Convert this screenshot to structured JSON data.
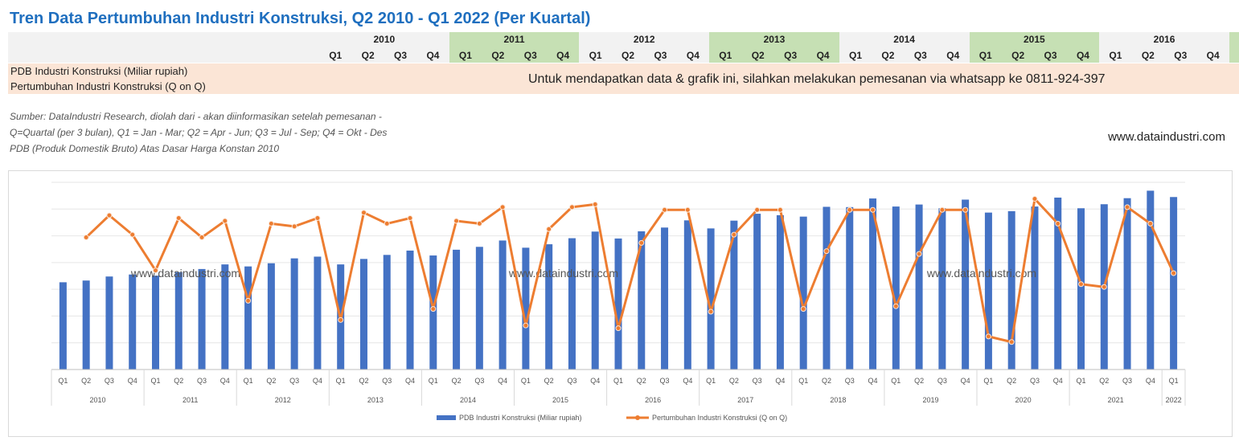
{
  "title": "Tren Data Pertumbuhan Industri Konstruksi, Q2 2010 - Q1 2022 (Per Kuartal)",
  "header": {
    "years": [
      "2010",
      "2011",
      "2012",
      "2013",
      "2014",
      "2015",
      "2016"
    ],
    "quarters": [
      "Q1",
      "Q2",
      "Q3",
      "Q4"
    ],
    "last_year_quarters": [
      "Q1",
      "Q2",
      "Q3",
      "Q4"
    ],
    "highlight_color": "#c6e0b4",
    "plain_color": "#f2f2f2"
  },
  "rows": {
    "row1_label": "PDB Industri Konstruksi (Miliar rupiah)",
    "row2_label": "Pertumbuhan Industri Konstruksi (Q on Q)",
    "notice": "Untuk mendapatkan data & grafik ini, silahkan melakukan pemesanan via whatsapp ke 0811-924-397"
  },
  "source": {
    "line1": "Sumber: DataIndustri Research, diolah dari - akan diinformasikan setelah pemesanan -",
    "line2": "Q=Quartal (per 3 bulan), Q1 = Jan - Mar; Q2 = Apr - Jun; Q3 = Jul - Sep; Q4 = Okt - Des",
    "line3": "PDB (Produk Domestik Bruto) Atas Dasar Harga Konstan 2010"
  },
  "site": "www.dataindustri.com",
  "watermark": "www.dataindustri.com",
  "chart_data": {
    "type": "bar",
    "title": "",
    "xlabel": "",
    "ylabel": "",
    "grid": true,
    "legend_position": "bottom",
    "categories": [
      "Q1",
      "Q2",
      "Q3",
      "Q4",
      "Q1",
      "Q2",
      "Q3",
      "Q4",
      "Q1",
      "Q2",
      "Q3",
      "Q4",
      "Q1",
      "Q2",
      "Q3",
      "Q4",
      "Q1",
      "Q2",
      "Q3",
      "Q4",
      "Q1",
      "Q2",
      "Q3",
      "Q4",
      "Q1",
      "Q2",
      "Q3",
      "Q4",
      "Q1",
      "Q2",
      "Q3",
      "Q4",
      "Q1",
      "Q2",
      "Q3",
      "Q4",
      "Q1",
      "Q2",
      "Q3",
      "Q4",
      "Q1",
      "Q2",
      "Q3",
      "Q4",
      "Q1",
      "Q2",
      "Q3",
      "Q4",
      "Q1"
    ],
    "year_groups": [
      {
        "label": "2010",
        "count": 4
      },
      {
        "label": "2011",
        "count": 4
      },
      {
        "label": "2012",
        "count": 4
      },
      {
        "label": "2013",
        "count": 4
      },
      {
        "label": "2014",
        "count": 4
      },
      {
        "label": "2015",
        "count": 4
      },
      {
        "label": "2016",
        "count": 4
      },
      {
        "label": "2017",
        "count": 4
      },
      {
        "label": "2018",
        "count": 4
      },
      {
        "label": "2019",
        "count": 4
      },
      {
        "label": "2020",
        "count": 4
      },
      {
        "label": "2021",
        "count": 4
      },
      {
        "label": "2022",
        "count": 1
      }
    ],
    "series": [
      {
        "name": "PDB Industri Konstruksi (Miliar rupiah)",
        "type": "bar",
        "color": "#4472c4",
        "values": [
          3.03,
          3.09,
          3.23,
          3.3,
          3.26,
          3.38,
          3.49,
          3.65,
          3.58,
          3.69,
          3.86,
          3.92,
          3.65,
          3.84,
          3.98,
          4.13,
          3.96,
          4.16,
          4.26,
          4.48,
          4.23,
          4.35,
          4.56,
          4.79,
          4.55,
          4.8,
          4.93,
          5.18,
          4.9,
          5.17,
          5.41,
          5.36,
          5.31,
          5.65,
          5.64,
          5.94,
          5.66,
          5.73,
          5.6,
          5.9,
          5.45,
          5.5,
          5.66,
          5.97,
          5.6,
          5.74,
          5.95,
          6.21,
          5.99
        ]
      },
      {
        "name": "Pertumbuhan Industri Konstruksi (Q on Q)",
        "type": "line",
        "color": "#ed7d31",
        "values": [
          null,
          4.8,
          5.6,
          4.9,
          3.6,
          5.5,
          4.8,
          5.4,
          2.5,
          5.3,
          5.2,
          5.5,
          1.8,
          5.7,
          5.3,
          5.5,
          2.2,
          5.4,
          5.3,
          5.9,
          1.6,
          5.1,
          5.9,
          6.0,
          1.5,
          4.6,
          5.8,
          5.8,
          2.1,
          4.9,
          5.8,
          5.8,
          2.2,
          4.3,
          5.8,
          5.8,
          2.3,
          4.2,
          5.8,
          5.8,
          1.2,
          1.0,
          6.2,
          5.3,
          3.1,
          3.0,
          5.9,
          5.3,
          3.5
        ]
      }
    ]
  }
}
